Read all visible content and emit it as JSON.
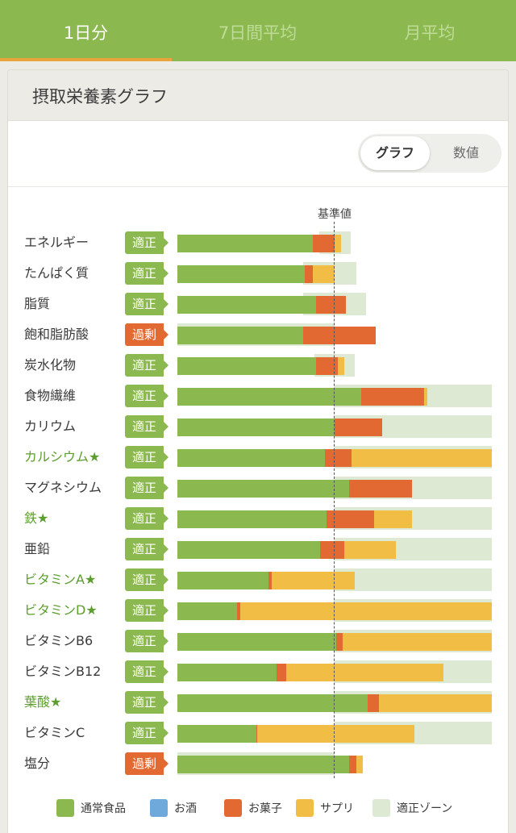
{
  "tabs": [
    {
      "label": "1日分",
      "active": true
    },
    {
      "label": "7日間平均",
      "active": false
    },
    {
      "label": "月平均",
      "active": false
    }
  ],
  "card": {
    "title": "摂取栄養素グラフ"
  },
  "view_toggle": [
    {
      "label": "グラフ",
      "active": true
    },
    {
      "label": "数値",
      "active": false
    }
  ],
  "colors": {
    "normal_food": "#8bb84f",
    "alcohol": "#6fa9dc",
    "sweets": "#e26a32",
    "supplement": "#f1bd45",
    "zone": "#dde9d2",
    "status_ok": "#8bb84f",
    "status_over": "#e26a32"
  },
  "chart_data": {
    "type": "bar",
    "orientation": "horizontal",
    "stacked": true,
    "reference_label": "基準値",
    "reference_value": 100,
    "unit": "% of 基準値",
    "xlim": [
      0,
      200
    ],
    "legend": [
      "通常食品",
      "お酒",
      "お菓子",
      "サプリ",
      "適正ゾーン"
    ],
    "rows": [
      {
        "name": "エネルギー",
        "star": false,
        "status": "適正",
        "status_type": "ok",
        "normal": 86,
        "alcohol": 0,
        "sweets": 14,
        "supplement": 4,
        "zone": [
          90,
          110
        ]
      },
      {
        "name": "たんぱく質",
        "star": false,
        "status": "適正",
        "status_type": "ok",
        "normal": 81,
        "alcohol": 0,
        "sweets": 5,
        "supplement": 14,
        "zone": [
          80,
          114
        ]
      },
      {
        "name": "脂質",
        "star": false,
        "status": "適正",
        "status_type": "ok",
        "normal": 88,
        "alcohol": 0,
        "sweets": 19,
        "supplement": 0,
        "zone": [
          80,
          120
        ]
      },
      {
        "name": "飽和脂肪酸",
        "star": false,
        "status": "過剰",
        "status_type": "over",
        "normal": 80,
        "alcohol": 0,
        "sweets": 46,
        "supplement": 0,
        "zone": [
          0,
          100
        ]
      },
      {
        "name": "炭水化物",
        "star": false,
        "status": "適正",
        "status_type": "ok",
        "normal": 88,
        "alcohol": 0,
        "sweets": 14,
        "supplement": 4,
        "zone": [
          87,
          113
        ]
      },
      {
        "name": "食物繊維",
        "star": false,
        "status": "適正",
        "status_type": "ok",
        "normal": 117,
        "alcohol": 0,
        "sweets": 40,
        "supplement": 2,
        "zone": [
          100,
          200
        ]
      },
      {
        "name": "カリウム",
        "star": false,
        "status": "適正",
        "status_type": "ok",
        "normal": 100,
        "alcohol": 0,
        "sweets": 30,
        "supplement": 0,
        "zone": [
          100,
          200
        ]
      },
      {
        "name": "カルシウム★",
        "star": true,
        "status": "適正",
        "status_type": "ok",
        "normal": 94,
        "alcohol": 0,
        "sweets": 17,
        "supplement": 89,
        "zone": [
          100,
          200
        ]
      },
      {
        "name": "マグネシウム",
        "star": false,
        "status": "適正",
        "status_type": "ok",
        "normal": 109,
        "alcohol": 0,
        "sweets": 40,
        "supplement": 0,
        "zone": [
          100,
          200
        ]
      },
      {
        "name": "鉄★",
        "star": true,
        "status": "適正",
        "status_type": "ok",
        "normal": 95,
        "alcohol": 0,
        "sweets": 30,
        "supplement": 24,
        "zone": [
          100,
          200
        ]
      },
      {
        "name": "亜鉛",
        "star": false,
        "status": "適正",
        "status_type": "ok",
        "normal": 91,
        "alcohol": 0,
        "sweets": 15,
        "supplement": 33,
        "zone": [
          100,
          200
        ]
      },
      {
        "name": "ビタミンA★",
        "star": true,
        "status": "適正",
        "status_type": "ok",
        "normal": 58,
        "alcohol": 0,
        "sweets": 2,
        "supplement": 53,
        "zone": [
          100,
          200
        ]
      },
      {
        "name": "ビタミンD★",
        "star": true,
        "status": "適正",
        "status_type": "ok",
        "normal": 38,
        "alcohol": 0,
        "sweets": 2,
        "supplement": 160,
        "zone": [
          100,
          200
        ]
      },
      {
        "name": "ビタミンB6",
        "star": false,
        "status": "適正",
        "status_type": "ok",
        "normal": 101,
        "alcohol": 0,
        "sweets": 4,
        "supplement": 95,
        "zone": [
          100,
          200
        ]
      },
      {
        "name": "ビタミンB12",
        "star": false,
        "status": "適正",
        "status_type": "ok",
        "normal": 63,
        "alcohol": 0,
        "sweets": 6,
        "supplement": 100,
        "zone": [
          100,
          200
        ]
      },
      {
        "name": "葉酸★",
        "star": true,
        "status": "適正",
        "status_type": "ok",
        "normal": 121,
        "alcohol": 0,
        "sweets": 7,
        "supplement": 72,
        "zone": [
          100,
          200
        ]
      },
      {
        "name": "ビタミンC",
        "star": false,
        "status": "適正",
        "status_type": "ok",
        "normal": 50,
        "alcohol": 0,
        "sweets": 1,
        "supplement": 100,
        "zone": [
          100,
          200
        ]
      },
      {
        "name": "塩分",
        "star": false,
        "status": "過剰",
        "status_type": "over",
        "normal": 109,
        "alcohol": 0,
        "sweets": 5,
        "supplement": 4,
        "zone": [
          0,
          100
        ]
      }
    ]
  }
}
